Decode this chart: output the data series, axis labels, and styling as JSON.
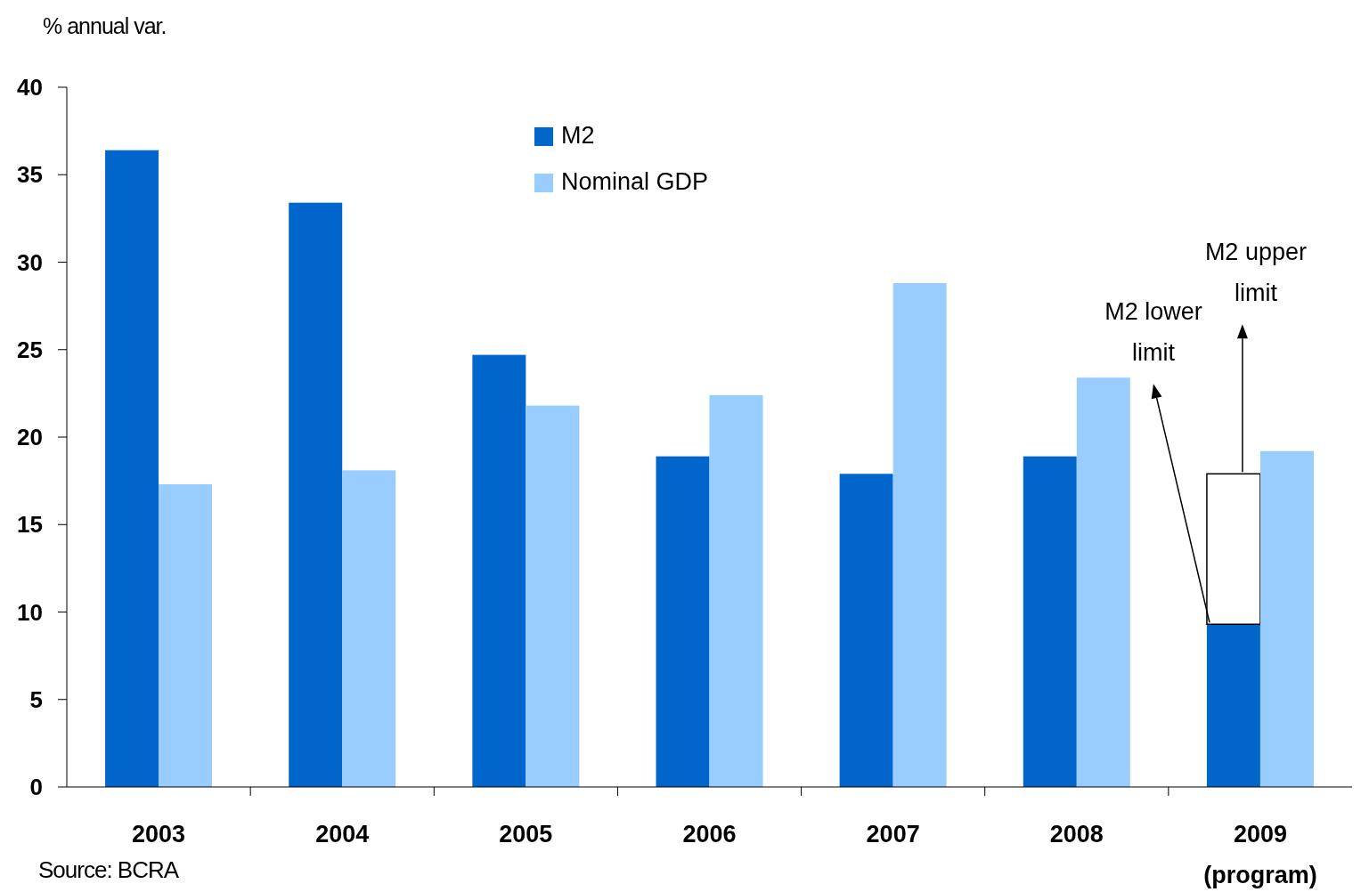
{
  "chart_data": {
    "type": "bar",
    "ylabel": "% annual var.",
    "categories": [
      "2003",
      "2004",
      "2005",
      "2006",
      "2007",
      "2008",
      "2009 (program)"
    ],
    "series": [
      {
        "name": "M2",
        "color": "#0066cc",
        "values": [
          36.4,
          33.4,
          24.7,
          18.9,
          17.9,
          18.9,
          9.3
        ]
      },
      {
        "color": "#ffffff",
        "base": [
          null,
          null,
          null,
          null,
          null,
          null,
          9.3
        ],
        "values": [
          null,
          null,
          null,
          null,
          null,
          null,
          8.6
        ]
      },
      {
        "name": "Nominal GDP",
        "color": "#99ccff",
        "values": [
          17.3,
          18.1,
          21.8,
          22.4,
          28.8,
          23.4,
          19.2
        ]
      }
    ],
    "ylim": [
      0,
      40
    ],
    "yticks": [
      0,
      5,
      10,
      15,
      20,
      25,
      30,
      35,
      40
    ],
    "grid": false,
    "legend": "top",
    "annotations": [
      "M2 upper limit",
      "M2 lower limit",
      "Source: BCRA"
    ]
  }
}
